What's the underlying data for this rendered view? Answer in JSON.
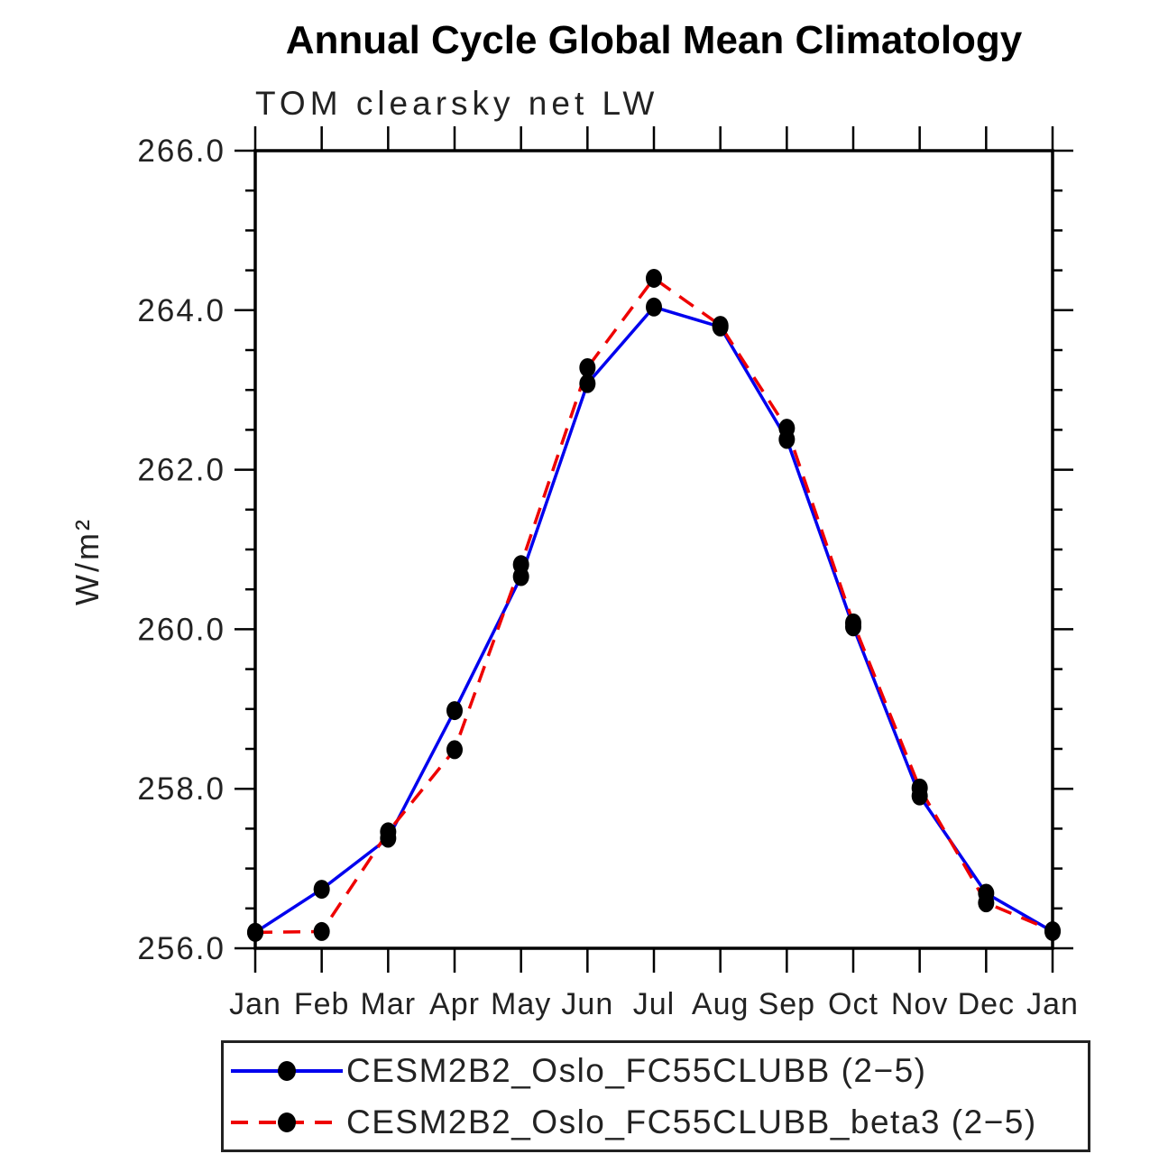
{
  "title": "Annual Cycle Global Mean Climatology",
  "subtitle": "TOM clearsky net LW",
  "ylabel": "W/m²",
  "colors": {
    "series1": "#0000ee",
    "series2": "#ee0000",
    "marker": "#000000",
    "axis": "#000000",
    "text": "#222222"
  },
  "chart_data": {
    "type": "line",
    "categories": [
      "Jan",
      "Feb",
      "Mar",
      "Apr",
      "May",
      "Jun",
      "Jul",
      "Aug",
      "Sep",
      "Oct",
      "Nov",
      "Dec",
      "Jan"
    ],
    "series": [
      {
        "name": "CESM2B2_Oslo_FC55CLUBB (2−5)",
        "color": "#0000ee",
        "line": "solid",
        "values": [
          256.2,
          256.74,
          257.38,
          258.98,
          260.66,
          263.08,
          264.04,
          263.79,
          262.38,
          260.03,
          257.91,
          256.69,
          256.21
        ]
      },
      {
        "name": "CESM2B2_Oslo_FC55CLUBB_beta3 (2−5)",
        "color": "#ee0000",
        "line": "dashed",
        "values": [
          256.2,
          256.21,
          257.46,
          258.49,
          260.81,
          263.28,
          264.4,
          263.81,
          262.52,
          260.08,
          258.01,
          256.57,
          256.22
        ]
      }
    ],
    "ylim": [
      256.0,
      266.0
    ],
    "y_major_ticks": [
      256.0,
      258.0,
      260.0,
      262.0,
      264.0,
      266.0
    ],
    "y_tick_labels": [
      "256.0",
      "258.0",
      "260.0",
      "262.0",
      "264.0",
      "266.0"
    ],
    "y_minor_step": 0.5,
    "grid": "off",
    "legend_position": "bottom",
    "marker": "filled-circle"
  }
}
